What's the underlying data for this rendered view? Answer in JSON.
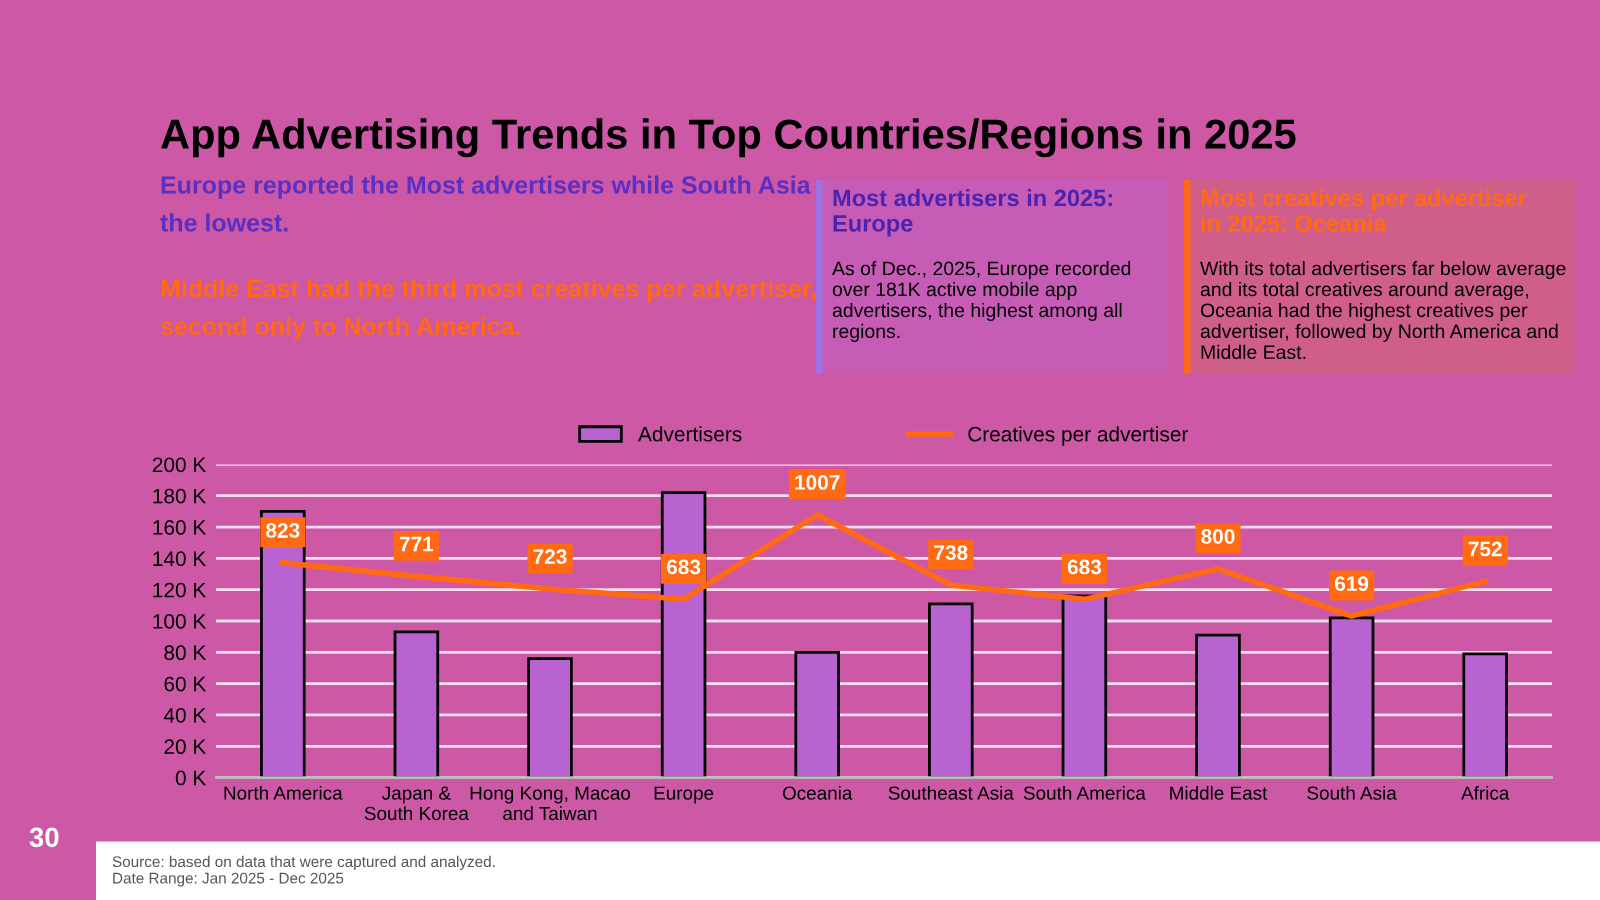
{
  "chart_data": {
    "type": "bar",
    "title": "App Advertising Trends in Top Countries/Regions in 2025",
    "subtitle": "Europe reported the Most advertisers while South Asia\nthe lowest.",
    "annotations": [
      "Middle East had the third most creatives per advertiser,\nsecond only to North America.",
      "Most advertisers in 2025:\nEurope",
      "As of Dec., 2025, Europe recorded\nover 181K active mobile app\nadvertisers, the highest among all\nregions.",
      "Most creatives per advertiser\nin 2025: Oceania",
      "With its total advertisers far below average\nand its total creatives around average,\nOceania had the highest creatives per\nadvertiser, followed by North America and\nMiddle East.",
      "Source: based on data that were captured and analyzed.\nDate Range: Jan 2025 - Dec 2025",
      "30"
    ],
    "categories": [
      "North America",
      "Japan &\nSouth Korea",
      "Hong Kong, Macao\nand Taiwan",
      "Europe",
      "Oceania",
      "Southeast Asia",
      "South America",
      "Middle East",
      "South Asia",
      "Africa"
    ],
    "series": [
      {
        "name": "Advertisers",
        "color": "#b962d2",
        "values": [
          170000,
          93000,
          76000,
          182000,
          80000,
          111000,
          116000,
          91000,
          102000,
          79000
        ]
      },
      {
        "name": "Creatives per advertiser",
        "type": "line",
        "axis": "y2",
        "color": "#ff6a13",
        "values": [
          823,
          771,
          723,
          683,
          1007,
          738,
          683,
          800,
          619,
          752
        ],
        "value_labels": [
          "823",
          "771",
          "723",
          "683",
          "1007",
          "738",
          "683",
          "800",
          "619",
          "752"
        ]
      }
    ],
    "ylim": [
      0,
      200000
    ],
    "yticks": [
      {
        "value": 0,
        "label": "0 K"
      },
      {
        "value": 20000,
        "label": "20 K"
      },
      {
        "value": 40000,
        "label": "40 K"
      },
      {
        "value": 60000,
        "label": "60 K"
      },
      {
        "value": 80000,
        "label": "80 K"
      },
      {
        "value": 100000,
        "label": "100 K"
      },
      {
        "value": 120000,
        "label": "120 K"
      },
      {
        "value": 140000,
        "label": "140 K"
      },
      {
        "value": 160000,
        "label": "160 K"
      },
      {
        "value": 180000,
        "label": "180 K"
      },
      {
        "value": 200000,
        "label": "200 K"
      }
    ],
    "y2lim": [
      0,
      1200
    ],
    "tick_labels": "xy",
    "grid": "y",
    "legend": "top"
  }
}
